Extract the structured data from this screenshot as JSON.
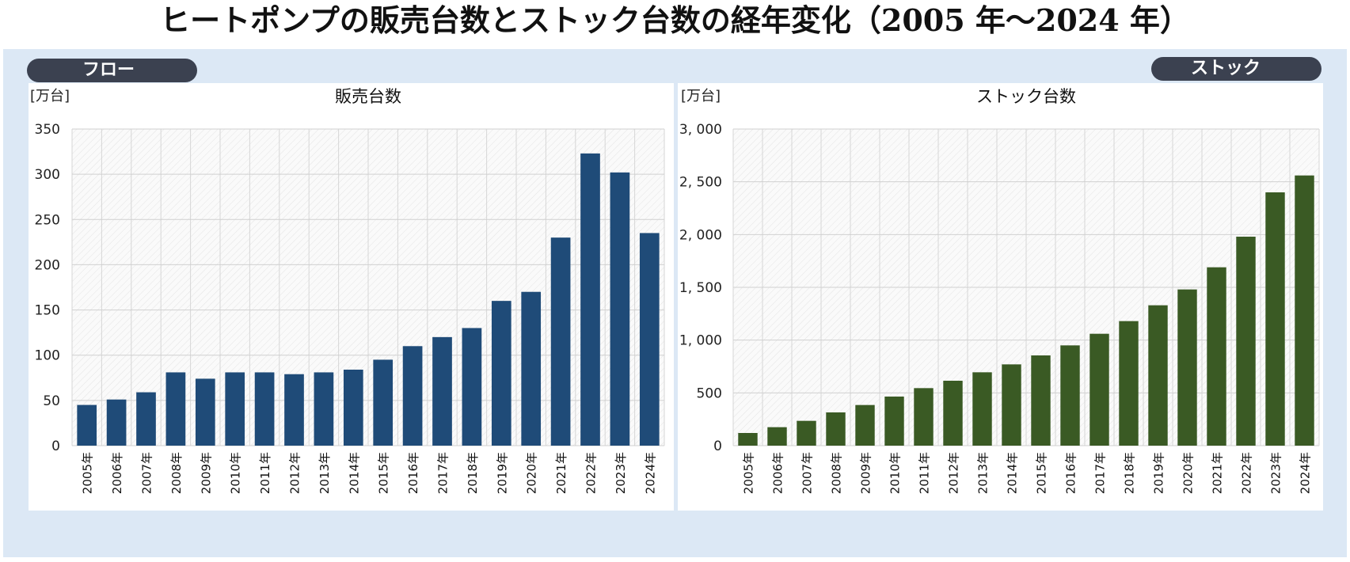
{
  "title": "ヒートポンプの販売台数とストック台数の経年変化（2005 年〜2024 年）",
  "badges": {
    "flow": "フロー",
    "stock": "ストック"
  },
  "colors": {
    "flow_bar": "#1f4b78",
    "stock_bar": "#3a5a24",
    "backdrop": "#dce8f5",
    "badge": "#3b4150"
  },
  "chart_data": [
    {
      "type": "bar",
      "title": "販売台数",
      "ylabel": "[万台]",
      "xlabel": "",
      "ylim": [
        0,
        350
      ],
      "yticks": [
        0,
        50,
        100,
        150,
        200,
        250,
        300,
        350
      ],
      "ytick_labels": [
        "0",
        "50",
        "100",
        "150",
        "200",
        "250",
        "300",
        "350"
      ],
      "grid": true,
      "categories": [
        "2005年",
        "2006年",
        "2007年",
        "2008年",
        "2009年",
        "2010年",
        "2011年",
        "2012年",
        "2013年",
        "2014年",
        "2015年",
        "2016年",
        "2017年",
        "2018年",
        "2019年",
        "2020年",
        "2021年",
        "2022年",
        "2023年",
        "2024年"
      ],
      "values": [
        45,
        51,
        59,
        81,
        74,
        81,
        81,
        79,
        81,
        84,
        95,
        110,
        120,
        130,
        160,
        170,
        230,
        323,
        302,
        235
      ]
    },
    {
      "type": "bar",
      "title": "ストック台数",
      "ylabel": "[万台]",
      "xlabel": "",
      "ylim": [
        0,
        3000
      ],
      "yticks": [
        0,
        500,
        1000,
        1500,
        2000,
        2500,
        3000
      ],
      "ytick_labels": [
        "0",
        "500",
        "1, 000",
        "1, 500",
        "2, 000",
        "2, 500",
        "3, 000"
      ],
      "grid": true,
      "categories": [
        "2005年",
        "2006年",
        "2007年",
        "2008年",
        "2009年",
        "2010年",
        "2011年",
        "2012年",
        "2013年",
        "2014年",
        "2015年",
        "2016年",
        "2017年",
        "2018年",
        "2019年",
        "2020年",
        "2021年",
        "2022年",
        "2023年",
        "2024年"
      ],
      "values": [
        120,
        175,
        235,
        315,
        385,
        465,
        545,
        615,
        695,
        770,
        855,
        950,
        1060,
        1180,
        1330,
        1480,
        1690,
        1980,
        2400,
        2560
      ]
    }
  ]
}
